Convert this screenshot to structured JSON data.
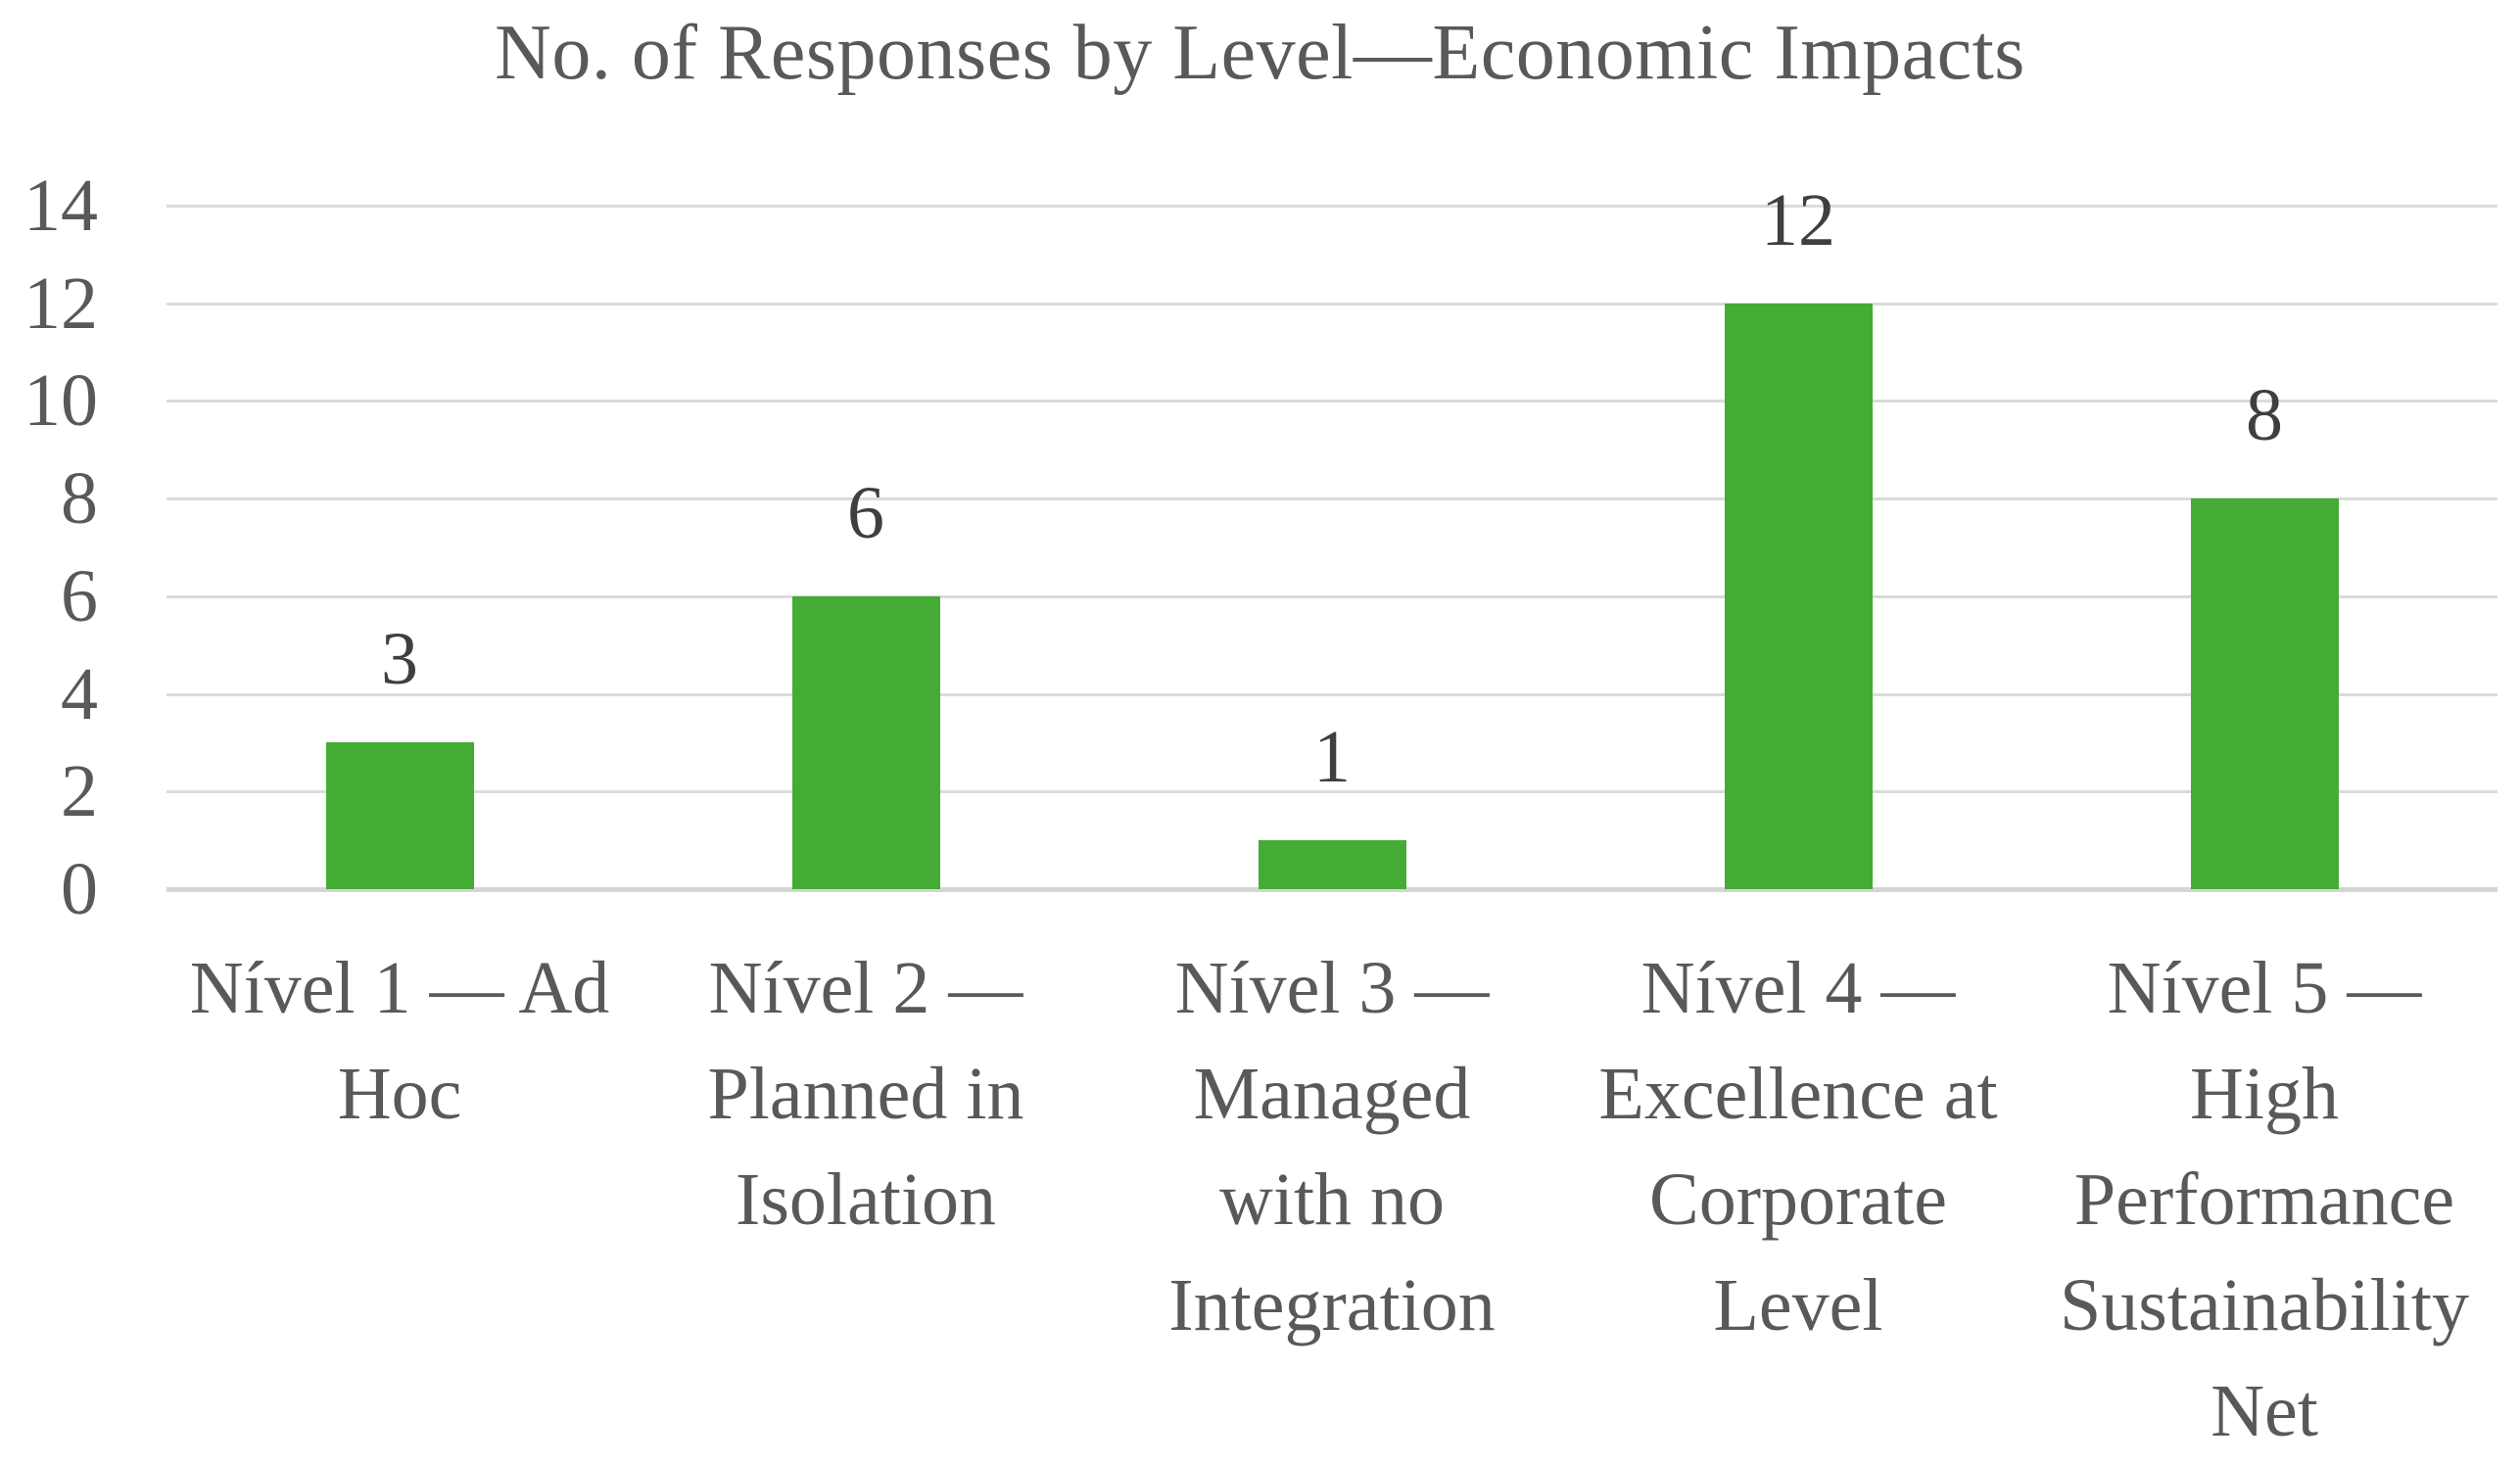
{
  "chart_data": {
    "type": "bar",
    "title": "No. of Responses by Level—Economic Impacts",
    "categories": [
      "Nível 1 — Ad Hoc",
      "Nível 2 — Planned in Isolation",
      "Nível 3 — Managed with no Integration",
      "Nível 4 — Excellence at Corporate Level",
      "Nível 5 — High Performance Sustainability Net"
    ],
    "category_lines": [
      [
        "Nível 1 — Ad",
        "Hoc"
      ],
      [
        "Nível 2 —",
        "Planned in",
        "Isolation"
      ],
      [
        "Nível 3 —",
        "Managed",
        "with no",
        "Integration"
      ],
      [
        "Nível 4 —",
        "Excellence at",
        "Corporate",
        "Level"
      ],
      [
        "Nível 5 —",
        "High",
        "Performance",
        "Sustainability",
        "Net"
      ]
    ],
    "values": [
      3,
      6,
      1,
      12,
      8
    ],
    "data_labels": [
      "3",
      "6",
      "1",
      "12",
      "8"
    ],
    "xlabel": "",
    "ylabel": "",
    "yticks": [
      0,
      2,
      4,
      6,
      8,
      10,
      12,
      14
    ],
    "ylim": [
      0,
      14
    ],
    "grid": "horizontal",
    "legend": "none",
    "colors": {
      "bar": "#44ac34",
      "gridline": "#dbdbdb",
      "axis_line": "#d5d5d5",
      "title_text": "#595959",
      "tick_text": "#595959",
      "data_label_text": "#3f3f3f"
    }
  }
}
